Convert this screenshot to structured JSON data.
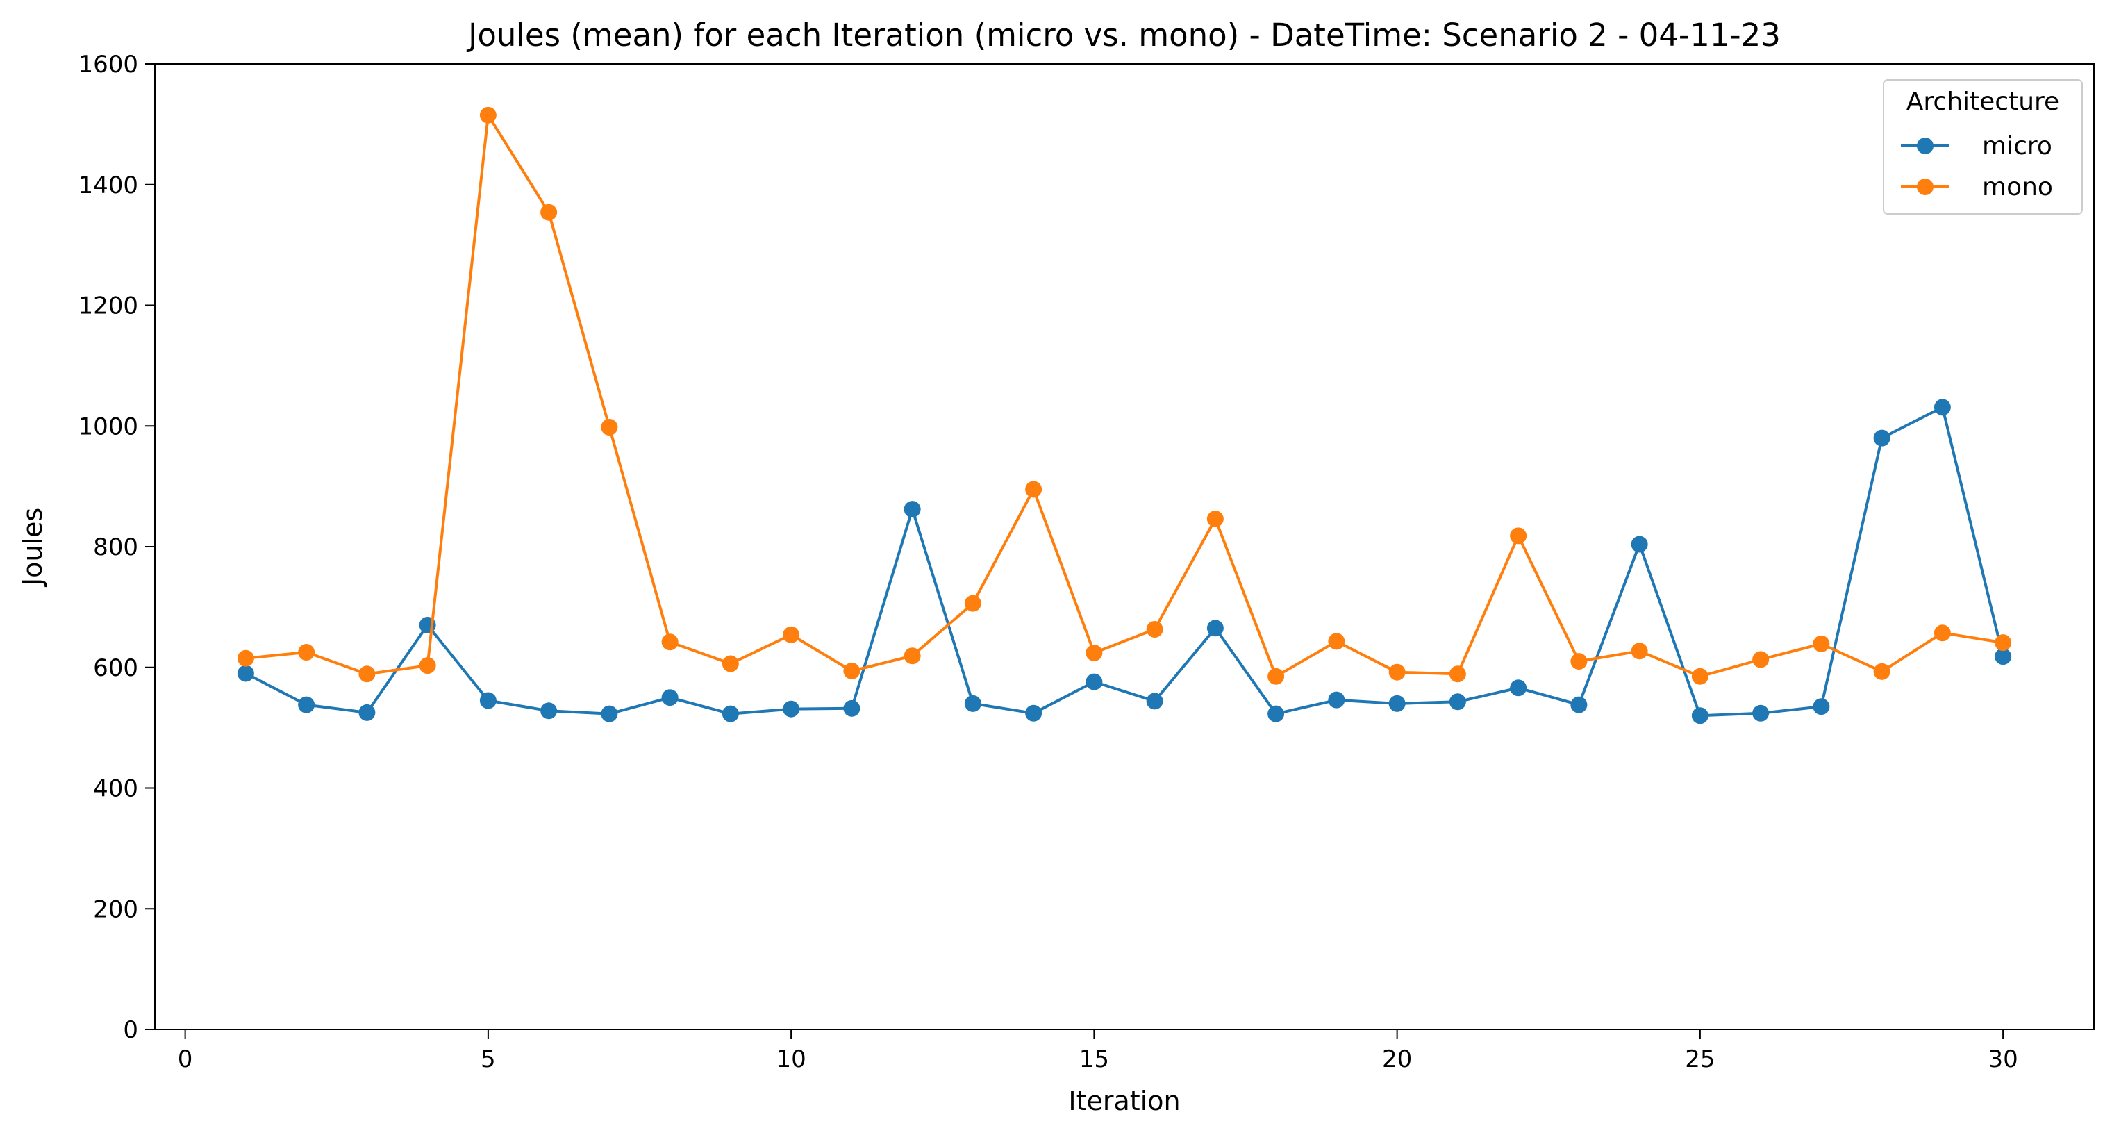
{
  "chart_data": {
    "type": "line",
    "title": "Joules (mean) for each Iteration (micro vs. mono) - DateTime: Scenario 2 - 04-11-23",
    "xlabel": "Iteration",
    "ylabel": "Joules",
    "xlim": [
      -0.5,
      31.5
    ],
    "ylim": [
      0,
      1600
    ],
    "xticks": [
      0,
      5,
      10,
      15,
      20,
      25,
      30
    ],
    "yticks": [
      0,
      200,
      400,
      600,
      800,
      1000,
      1200,
      1400,
      1600
    ],
    "grid": false,
    "legend": {
      "title": "Architecture",
      "placement": "top-right"
    },
    "x": [
      1,
      2,
      3,
      4,
      5,
      6,
      7,
      8,
      9,
      10,
      11,
      12,
      13,
      14,
      15,
      16,
      17,
      18,
      19,
      20,
      21,
      22,
      23,
      24,
      25,
      26,
      27,
      28,
      29,
      30
    ],
    "series": [
      {
        "name": "micro",
        "color": "#1f77b4",
        "values": [
          590,
          538,
          525,
          670,
          545,
          528,
          523,
          550,
          523,
          531,
          532,
          862,
          540,
          524,
          576,
          544,
          665,
          523,
          546,
          540,
          543,
          566,
          538,
          804,
          520,
          524,
          535,
          980,
          1031,
          618
        ]
      },
      {
        "name": "mono",
        "color": "#ff7f0e",
        "values": [
          615,
          625,
          589,
          603,
          1515,
          1354,
          998,
          642,
          606,
          654,
          594,
          619,
          706,
          895,
          624,
          663,
          846,
          585,
          643,
          592,
          589,
          818,
          610,
          627,
          585,
          613,
          639,
          593,
          657,
          641
        ]
      }
    ]
  }
}
